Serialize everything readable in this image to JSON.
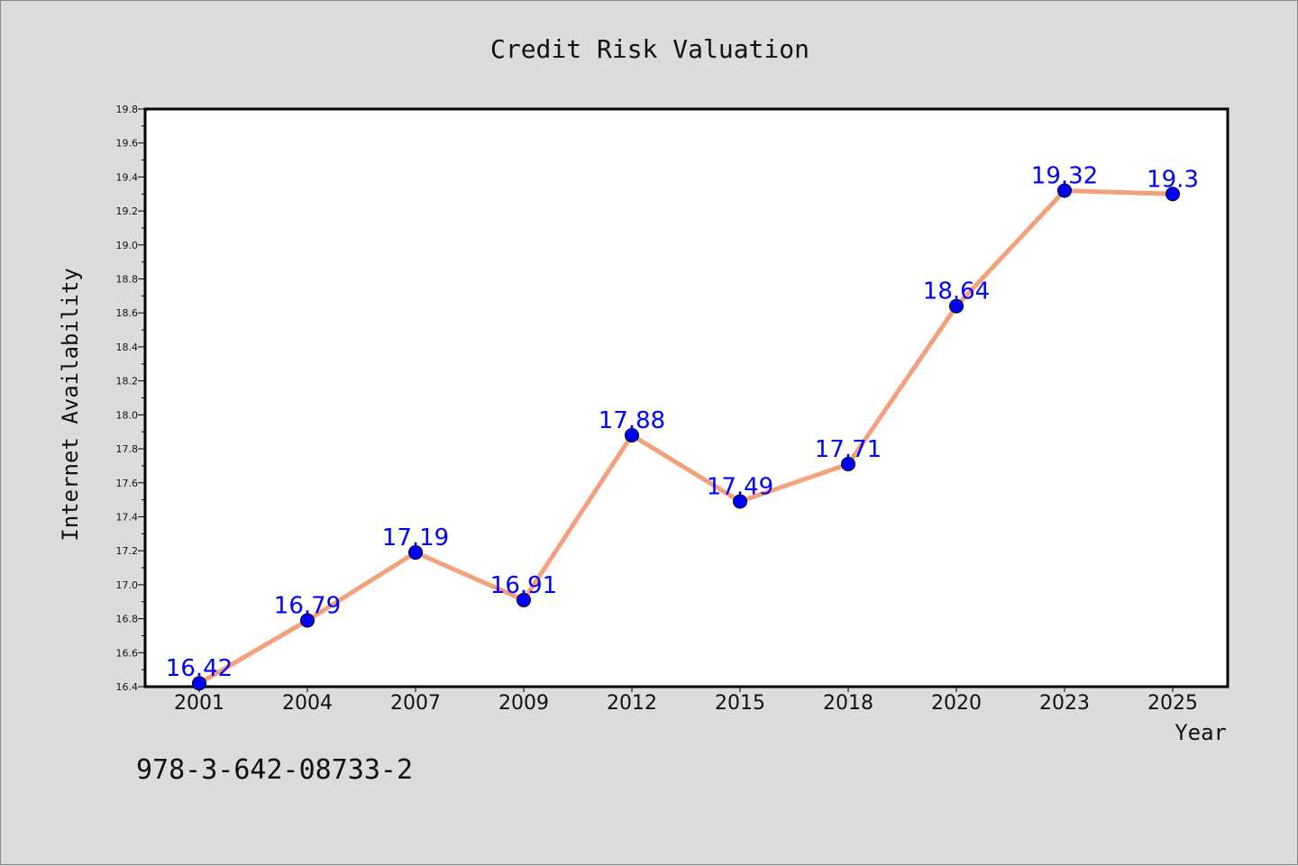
{
  "chart_data": {
    "type": "line",
    "title": "Credit Risk Valuation",
    "xlabel": "Year",
    "ylabel": "Internet Availability",
    "categories": [
      "2001",
      "2004",
      "2007",
      "2009",
      "2012",
      "2015",
      "2018",
      "2020",
      "2023",
      "2025"
    ],
    "series": [
      {
        "values": [
          16.42,
          16.79,
          17.19,
          16.91,
          17.88,
          17.49,
          17.71,
          18.64,
          19.32,
          19.3
        ]
      }
    ],
    "data_labels": [
      "16.42",
      "16.79",
      "17.19",
      "16.91",
      "17.88",
      "17.49",
      "17.71",
      "18.64",
      "19.32",
      "19.3"
    ],
    "ylim": [
      16.4,
      19.8
    ],
    "yticks": [
      "16.4",
      "16.6",
      "16.8",
      "17.0",
      "17.2",
      "17.4",
      "17.6",
      "17.8",
      "18.0",
      "18.2",
      "18.4",
      "18.6",
      "18.8",
      "19.0",
      "19.2",
      "19.4",
      "19.6",
      "19.8"
    ],
    "grid": false,
    "line_color": "#f4a07a",
    "marker_color": "#0000ff",
    "label_color": "#0000ff"
  },
  "footer_text": "978-3-642-08733-2"
}
